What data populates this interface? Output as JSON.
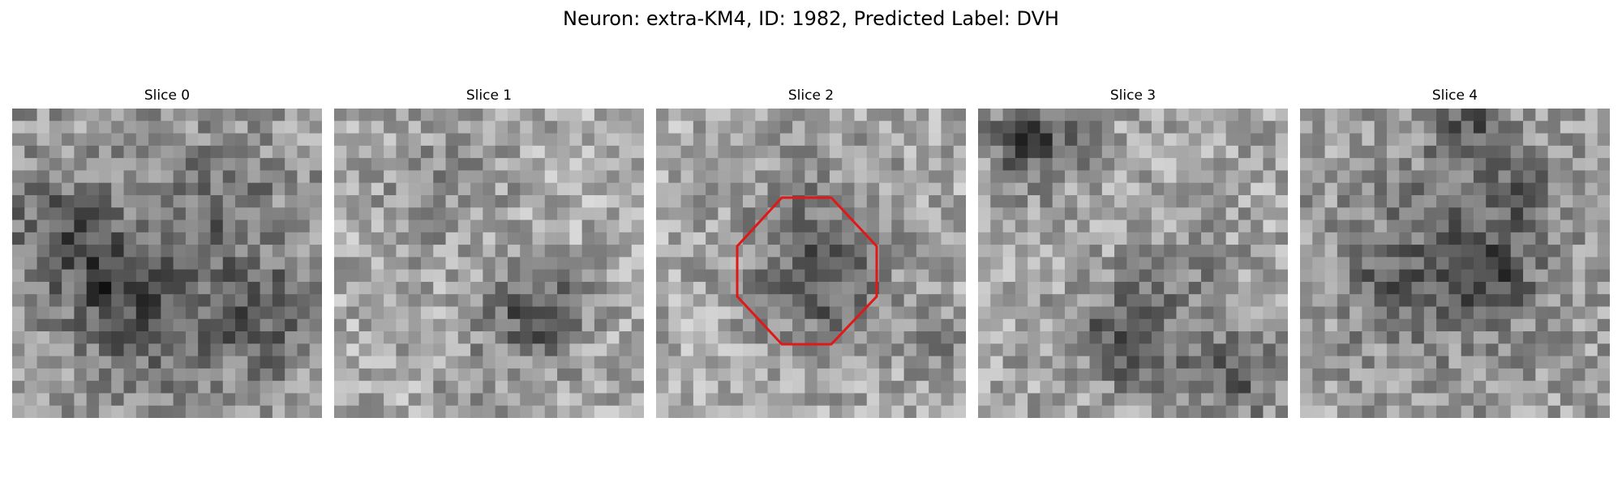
{
  "figure": {
    "title": "Neuron: extra-KM4, ID: 1982, Predicted Label: DVH"
  },
  "slices": [
    {
      "title": "Slice 0",
      "roi": false
    },
    {
      "title": "Slice 1",
      "roi": false
    },
    {
      "title": "Slice 2",
      "roi": true
    },
    {
      "title": "Slice 3",
      "roi": false
    },
    {
      "title": "Slice 4",
      "roi": false
    }
  ],
  "colors": {
    "roi_outline": "#e01818",
    "background": "#ffffff"
  }
}
